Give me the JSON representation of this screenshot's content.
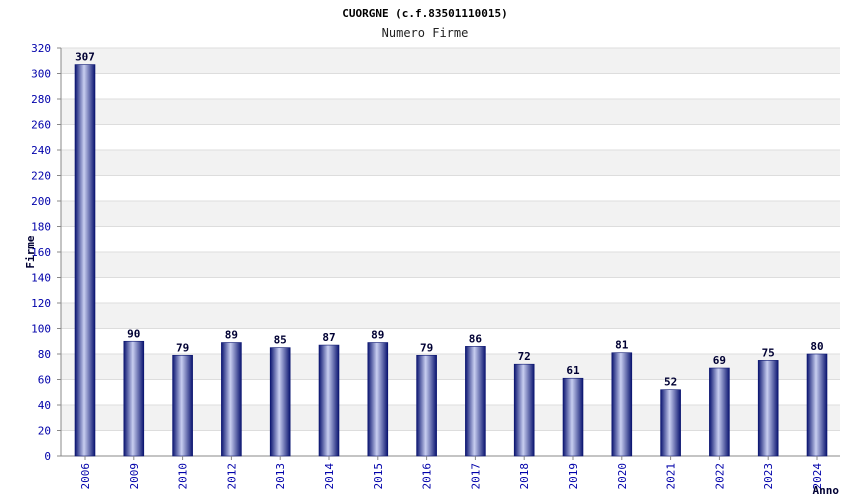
{
  "chart_data": {
    "type": "bar",
    "title": "CUORGNE (c.f.83501110015)",
    "subtitle": "Numero Firme",
    "xlabel": "Anno",
    "ylabel": "Firme",
    "ylim": [
      0,
      320
    ],
    "ytick_step": 20,
    "grid": true,
    "categories": [
      "2006",
      "2009",
      "2010",
      "2012",
      "2013",
      "2014",
      "2015",
      "2016",
      "2017",
      "2018",
      "2019",
      "2020",
      "2021",
      "2022",
      "2023",
      "2024"
    ],
    "values": [
      307,
      90,
      79,
      89,
      85,
      87,
      89,
      79,
      86,
      72,
      61,
      81,
      52,
      69,
      75,
      80
    ],
    "colors": {
      "bar_dark": "#0a1470",
      "bar_mid": "#2a3a9e",
      "bar_light": "#c8cef0",
      "band": "#f2f2f2",
      "axis": "#888888",
      "tick_text": "#0000aa"
    }
  }
}
